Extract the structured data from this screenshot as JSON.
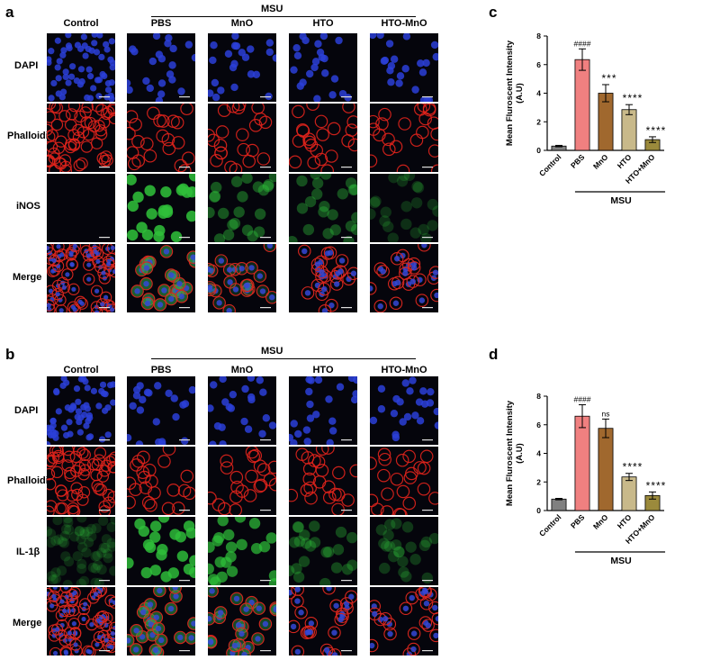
{
  "panels": {
    "a": {
      "letter": "a",
      "group_label": "MSU",
      "columns": [
        "Control",
        "PBS",
        "MnO",
        "HTO",
        "HTO-MnO"
      ],
      "rows": [
        {
          "label": "DAPI",
          "stain": "dapi"
        },
        {
          "label": "Phalloidin",
          "stain": "phalloidin"
        },
        {
          "label": "iNOS",
          "stain": "green"
        },
        {
          "label": "Merge",
          "stain": "merge"
        }
      ],
      "green_strength": [
        0.0,
        0.9,
        0.35,
        0.3,
        0.1
      ]
    },
    "b": {
      "letter": "b",
      "group_label": "MSU",
      "columns": [
        "Control",
        "PBS",
        "MnO",
        "HTO",
        "HTO-MnO"
      ],
      "rows": [
        {
          "label": "DAPI",
          "stain": "dapi"
        },
        {
          "label": "Phalloidin",
          "stain": "phalloidin"
        },
        {
          "label": "IL-1β",
          "stain": "green"
        },
        {
          "label": "Merge",
          "stain": "merge"
        }
      ],
      "green_strength": [
        0.05,
        0.85,
        0.7,
        0.25,
        0.15
      ]
    }
  },
  "chart_data": [
    {
      "panel": "c",
      "type": "bar",
      "categories": [
        "Control",
        "PBS",
        "MnO",
        "HTO",
        "HTO+MnO"
      ],
      "values": [
        0.3,
        6.35,
        4.0,
        2.85,
        0.75
      ],
      "errors": [
        0.05,
        0.75,
        0.6,
        0.35,
        0.2
      ],
      "annotations": [
        "",
        "####",
        "***",
        "****",
        "****"
      ],
      "colors": [
        "#808080",
        "#f08080",
        "#a0682e",
        "#c8b98a",
        "#9b8a3c"
      ],
      "ylabel": "Mean Fluroscent Intensity (A.U)",
      "ylim": [
        0,
        8
      ],
      "yticks": [
        0,
        2,
        4,
        6,
        8
      ],
      "group_label": "MSU",
      "group_span": [
        "PBS",
        "HTO+MnO"
      ]
    },
    {
      "panel": "d",
      "type": "bar",
      "categories": [
        "Control",
        "PBS",
        "MnO",
        "HTO",
        "HTO+MnO"
      ],
      "values": [
        0.8,
        6.6,
        5.75,
        2.35,
        1.05
      ],
      "errors": [
        0.05,
        0.8,
        0.65,
        0.25,
        0.25
      ],
      "annotations": [
        "",
        "####",
        "ns",
        "****",
        "****"
      ],
      "colors": [
        "#808080",
        "#f08080",
        "#a0682e",
        "#c8b98a",
        "#9b8a3c"
      ],
      "ylabel": "Mean Fluroscent Intensity (A.U)",
      "ylim": [
        0,
        8
      ],
      "yticks": [
        0,
        2,
        4,
        6,
        8
      ],
      "group_label": "MSU",
      "group_span": [
        "PBS",
        "HTO+MnO"
      ]
    }
  ]
}
